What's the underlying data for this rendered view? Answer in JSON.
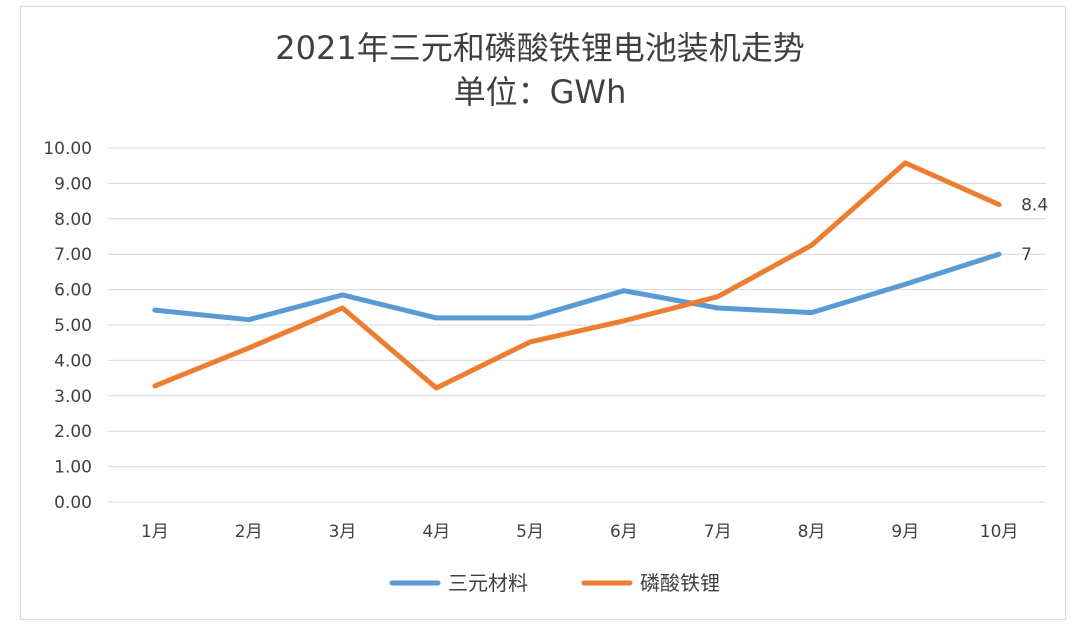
{
  "chart_data": {
    "type": "line",
    "title": "2021年三元和磷酸铁锂电池装机走势",
    "subtitle": "单位：GWh",
    "xlabel": "",
    "ylabel": "",
    "ylim": [
      0,
      10
    ],
    "y_ticks": [
      "0.00",
      "1.00",
      "2.00",
      "3.00",
      "4.00",
      "5.00",
      "6.00",
      "7.00",
      "8.00",
      "9.00",
      "10.00"
    ],
    "categories": [
      "1月",
      "2月",
      "3月",
      "4月",
      "5月",
      "6月",
      "7月",
      "8月",
      "9月",
      "10月"
    ],
    "grid": true,
    "legend_position": "bottom",
    "series": [
      {
        "name": "三元材料",
        "color": "#5B9BD5",
        "values": [
          5.42,
          5.15,
          5.85,
          5.2,
          5.2,
          5.97,
          5.48,
          5.35,
          6.15,
          7.0
        ],
        "end_label": "7"
      },
      {
        "name": "磷酸铁锂",
        "color": "#ED7D31",
        "values": [
          3.28,
          4.35,
          5.48,
          3.22,
          4.52,
          5.12,
          5.8,
          7.25,
          9.58,
          8.4
        ],
        "end_label": "8.4"
      }
    ]
  }
}
